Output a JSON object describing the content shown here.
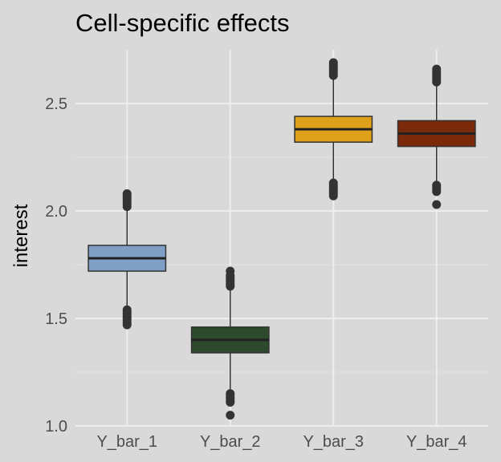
{
  "chart_data": {
    "type": "box",
    "title": "Cell-specific effects",
    "xlabel": "",
    "ylabel": "interest",
    "ylim": [
      1.0,
      2.75
    ],
    "yticks": [
      "1.0",
      "1.5",
      "2.0",
      "2.5"
    ],
    "ytick_values": [
      1.0,
      1.5,
      2.0,
      2.5
    ],
    "grid": true,
    "legend": "none",
    "categories": [
      "Y_bar_1",
      "Y_bar_2",
      "Y_bar_3",
      "Y_bar_4"
    ],
    "boxes": [
      {
        "category": "Y_bar_1",
        "color": "#7f9fc4",
        "min": 1.56,
        "q1": 1.72,
        "median": 1.78,
        "q3": 1.84,
        "max": 2.01,
        "outliers": [
          1.47,
          1.48,
          1.49,
          1.5,
          1.51,
          1.52,
          1.53,
          1.54,
          2.02,
          2.03,
          2.04,
          2.05,
          2.06,
          2.07,
          2.08
        ]
      },
      {
        "category": "Y_bar_2",
        "color": "#2d4a2d",
        "min": 1.17,
        "q1": 1.34,
        "median": 1.4,
        "q3": 1.46,
        "max": 1.64,
        "outliers": [
          1.05,
          1.11,
          1.12,
          1.13,
          1.14,
          1.15,
          1.65,
          1.66,
          1.67,
          1.68,
          1.69,
          1.7,
          1.72
        ]
      },
      {
        "category": "Y_bar_3",
        "color": "#dfa11a",
        "min": 2.14,
        "q1": 2.32,
        "median": 2.38,
        "q3": 2.44,
        "max": 2.62,
        "outliers": [
          2.07,
          2.08,
          2.09,
          2.1,
          2.11,
          2.12,
          2.13,
          2.63,
          2.64,
          2.65,
          2.66,
          2.67,
          2.68,
          2.69
        ]
      },
      {
        "category": "Y_bar_4",
        "color": "#7a2a0a",
        "min": 2.13,
        "q1": 2.3,
        "median": 2.36,
        "q3": 2.42,
        "max": 2.59,
        "outliers": [
          2.03,
          2.09,
          2.1,
          2.11,
          2.12,
          2.6,
          2.61,
          2.62,
          2.63,
          2.64,
          2.65,
          2.66
        ]
      }
    ]
  }
}
